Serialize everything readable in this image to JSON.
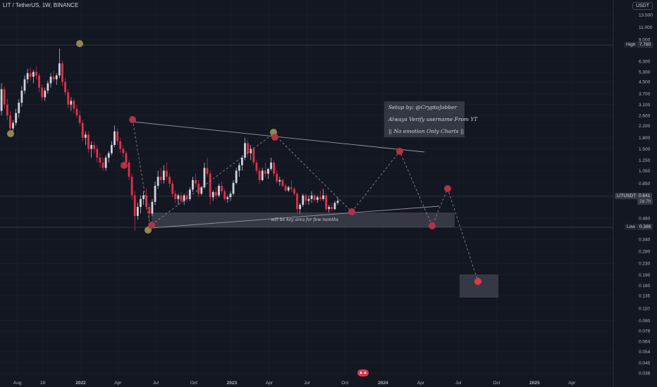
{
  "header": {
    "symbol_line": "LIT / TetherUS, 1W, BINANCE",
    "currency": "USDT"
  },
  "chart_data": {
    "type": "candlestick",
    "title": "LIT / TetherUS, 1W, BINANCE",
    "y_scale": "log",
    "ylim": [
      0.036,
      14.5
    ],
    "y_ticks": [
      "13.500",
      "11.000",
      "9.000",
      "7.780",
      "6.300",
      "5.300",
      "4.500",
      "3.700",
      "3.100",
      "2.600",
      "2.200",
      "1.800",
      "1.500",
      "1.250",
      "1.050",
      "0.850",
      "0.700",
      "0.641",
      "0.480",
      "0.386",
      "0.340",
      "0.280",
      "0.230",
      "0.190",
      "0.160",
      "0.135",
      "0.110",
      "0.090",
      "0.076",
      "0.064",
      "0.054",
      "0.045",
      "0.038"
    ],
    "y_tick_values": [
      13.5,
      11,
      9,
      7.78,
      6.3,
      5.3,
      4.5,
      3.7,
      3.1,
      2.6,
      2.2,
      1.8,
      1.5,
      1.25,
      1.05,
      0.85,
      0.7,
      0.641,
      0.48,
      0.386,
      0.34,
      0.28,
      0.23,
      0.19,
      0.16,
      0.135,
      0.11,
      0.09,
      0.076,
      0.064,
      0.054,
      0.045,
      0.038
    ],
    "x_ticks": [
      "Aug",
      "18",
      "2022",
      "Apr",
      "Jul",
      "Oct",
      "2023",
      "Apr",
      "Jul",
      "Oct",
      "2024",
      "Apr",
      "Jul",
      "Oct",
      "2025",
      "Apr"
    ],
    "x_tick_dates": [
      "2021-08-01",
      "2021-10-01",
      "2022-01-01",
      "2022-04-01",
      "2022-07-01",
      "2022-10-01",
      "2023-01-01",
      "2023-04-01",
      "2023-07-01",
      "2023-10-01",
      "2024-01-01",
      "2024-04-01",
      "2024-07-01",
      "2024-10-01",
      "2025-01-01",
      "2025-04-01"
    ],
    "xlim": [
      "2021-06-20",
      "2025-07-10"
    ],
    "price_high": {
      "label": "High",
      "value": "7.780"
    },
    "price_low": {
      "label": "Low",
      "value": "0.386"
    },
    "price_current": {
      "label": "LITUSDT",
      "value": "0.641",
      "countdown": "2d 7h"
    },
    "annotation": "will be key area for few months",
    "note_lines": [
      "Setup by: @CryptoJobber",
      "Always Verify username From YT",
      "|| No emotion Only Charts ||"
    ],
    "candles": [
      {
        "d": "2021-06-21",
        "o": 2.8,
        "h": 4.4,
        "l": 2.6,
        "c": 4.0
      },
      {
        "d": "2021-06-28",
        "o": 4.0,
        "h": 4.2,
        "l": 2.9,
        "c": 3.1
      },
      {
        "d": "2021-07-05",
        "o": 3.1,
        "h": 3.4,
        "l": 2.4,
        "c": 2.6
      },
      {
        "d": "2021-07-12",
        "o": 2.6,
        "h": 2.8,
        "l": 1.9,
        "c": 2.1
      },
      {
        "d": "2021-07-19",
        "o": 2.1,
        "h": 2.4,
        "l": 1.85,
        "c": 2.3
      },
      {
        "d": "2021-07-26",
        "o": 2.3,
        "h": 2.9,
        "l": 2.2,
        "c": 2.7
      },
      {
        "d": "2021-08-02",
        "o": 2.7,
        "h": 3.4,
        "l": 2.5,
        "c": 3.2
      },
      {
        "d": "2021-08-09",
        "o": 3.2,
        "h": 4.2,
        "l": 3.0,
        "c": 3.9
      },
      {
        "d": "2021-08-16",
        "o": 3.9,
        "h": 5.0,
        "l": 3.7,
        "c": 4.7
      },
      {
        "d": "2021-08-23",
        "o": 4.7,
        "h": 5.6,
        "l": 4.4,
        "c": 5.2
      },
      {
        "d": "2021-08-30",
        "o": 5.2,
        "h": 5.7,
        "l": 4.6,
        "c": 4.9
      },
      {
        "d": "2021-09-06",
        "o": 4.9,
        "h": 5.5,
        "l": 4.4,
        "c": 5.3
      },
      {
        "d": "2021-09-13",
        "o": 5.3,
        "h": 5.8,
        "l": 4.7,
        "c": 5.0
      },
      {
        "d": "2021-09-20",
        "o": 5.0,
        "h": 5.2,
        "l": 3.8,
        "c": 4.1
      },
      {
        "d": "2021-09-27",
        "o": 4.1,
        "h": 4.3,
        "l": 3.3,
        "c": 3.5
      },
      {
        "d": "2021-10-04",
        "o": 3.5,
        "h": 4.1,
        "l": 3.3,
        "c": 3.9
      },
      {
        "d": "2021-10-11",
        "o": 3.9,
        "h": 4.6,
        "l": 3.7,
        "c": 4.4
      },
      {
        "d": "2021-10-18",
        "o": 4.4,
        "h": 5.2,
        "l": 4.1,
        "c": 4.9
      },
      {
        "d": "2021-10-25",
        "o": 4.9,
        "h": 5.4,
        "l": 4.5,
        "c": 4.7
      },
      {
        "d": "2021-11-01",
        "o": 4.7,
        "h": 5.2,
        "l": 4.3,
        "c": 5.0
      },
      {
        "d": "2021-11-08",
        "o": 5.0,
        "h": 7.78,
        "l": 4.8,
        "c": 6.1
      },
      {
        "d": "2021-11-15",
        "o": 6.1,
        "h": 6.4,
        "l": 4.2,
        "c": 4.5
      },
      {
        "d": "2021-11-22",
        "o": 4.5,
        "h": 4.8,
        "l": 3.6,
        "c": 3.8
      },
      {
        "d": "2021-11-29",
        "o": 3.8,
        "h": 4.0,
        "l": 2.9,
        "c": 3.1
      },
      {
        "d": "2021-12-06",
        "o": 3.1,
        "h": 3.5,
        "l": 2.8,
        "c": 3.3
      },
      {
        "d": "2021-12-13",
        "o": 3.3,
        "h": 3.4,
        "l": 2.7,
        "c": 2.9
      },
      {
        "d": "2021-12-20",
        "o": 2.9,
        "h": 3.1,
        "l": 2.5,
        "c": 2.6
      },
      {
        "d": "2021-12-27",
        "o": 2.6,
        "h": 2.8,
        "l": 2.2,
        "c": 2.3
      },
      {
        "d": "2022-01-03",
        "o": 2.3,
        "h": 2.4,
        "l": 1.7,
        "c": 1.8
      },
      {
        "d": "2022-01-10",
        "o": 1.8,
        "h": 2.0,
        "l": 1.6,
        "c": 1.9
      },
      {
        "d": "2022-01-17",
        "o": 1.9,
        "h": 2.0,
        "l": 1.4,
        "c": 1.5
      },
      {
        "d": "2022-01-24",
        "o": 1.5,
        "h": 1.7,
        "l": 1.3,
        "c": 1.6
      },
      {
        "d": "2022-01-31",
        "o": 1.6,
        "h": 1.7,
        "l": 1.4,
        "c": 1.5
      },
      {
        "d": "2022-02-07",
        "o": 1.5,
        "h": 1.6,
        "l": 1.2,
        "c": 1.3
      },
      {
        "d": "2022-02-14",
        "o": 1.3,
        "h": 1.4,
        "l": 1.1,
        "c": 1.2
      },
      {
        "d": "2022-02-21",
        "o": 1.2,
        "h": 1.3,
        "l": 1.05,
        "c": 1.1
      },
      {
        "d": "2022-02-28",
        "o": 1.1,
        "h": 1.35,
        "l": 1.05,
        "c": 1.3
      },
      {
        "d": "2022-03-07",
        "o": 1.3,
        "h": 1.45,
        "l": 1.2,
        "c": 1.4
      },
      {
        "d": "2022-03-14",
        "o": 1.4,
        "h": 1.7,
        "l": 1.35,
        "c": 1.6
      },
      {
        "d": "2022-03-21",
        "o": 1.6,
        "h": 2.2,
        "l": 1.55,
        "c": 2.0
      },
      {
        "d": "2022-03-28",
        "o": 2.0,
        "h": 2.1,
        "l": 1.6,
        "c": 1.7
      },
      {
        "d": "2022-04-04",
        "o": 1.7,
        "h": 1.8,
        "l": 1.4,
        "c": 1.5
      },
      {
        "d": "2022-04-11",
        "o": 1.5,
        "h": 1.6,
        "l": 1.3,
        "c": 1.4
      },
      {
        "d": "2022-04-18",
        "o": 1.4,
        "h": 1.45,
        "l": 1.1,
        "c": 1.2
      },
      {
        "d": "2022-04-25",
        "o": 1.2,
        "h": 1.25,
        "l": 0.9,
        "c": 0.95
      },
      {
        "d": "2022-05-02",
        "o": 0.95,
        "h": 1.0,
        "l": 0.65,
        "c": 0.7
      },
      {
        "d": "2022-05-09",
        "o": 0.7,
        "h": 0.75,
        "l": 0.39,
        "c": 0.5
      },
      {
        "d": "2022-05-16",
        "o": 0.5,
        "h": 0.62,
        "l": 0.47,
        "c": 0.58
      },
      {
        "d": "2022-05-23",
        "o": 0.58,
        "h": 0.7,
        "l": 0.52,
        "c": 0.66
      },
      {
        "d": "2022-05-30",
        "o": 0.66,
        "h": 0.75,
        "l": 0.6,
        "c": 0.7
      },
      {
        "d": "2022-06-06",
        "o": 0.7,
        "h": 0.78,
        "l": 0.55,
        "c": 0.58
      },
      {
        "d": "2022-06-13",
        "o": 0.58,
        "h": 0.62,
        "l": 0.47,
        "c": 0.52
      },
      {
        "d": "2022-06-20",
        "o": 0.52,
        "h": 0.66,
        "l": 0.5,
        "c": 0.63
      },
      {
        "d": "2022-06-27",
        "o": 0.63,
        "h": 0.88,
        "l": 0.6,
        "c": 0.82
      },
      {
        "d": "2022-07-04",
        "o": 0.82,
        "h": 1.05,
        "l": 0.78,
        "c": 0.95
      },
      {
        "d": "2022-07-11",
        "o": 0.95,
        "h": 1.1,
        "l": 0.85,
        "c": 0.9
      },
      {
        "d": "2022-07-18",
        "o": 0.9,
        "h": 1.15,
        "l": 0.85,
        "c": 1.05
      },
      {
        "d": "2022-07-25",
        "o": 1.05,
        "h": 1.2,
        "l": 0.9,
        "c": 0.95
      },
      {
        "d": "2022-08-01",
        "o": 0.95,
        "h": 1.0,
        "l": 0.8,
        "c": 0.85
      },
      {
        "d": "2022-08-08",
        "o": 0.85,
        "h": 0.9,
        "l": 0.68,
        "c": 0.72
      },
      {
        "d": "2022-08-15",
        "o": 0.72,
        "h": 0.76,
        "l": 0.62,
        "c": 0.66
      },
      {
        "d": "2022-08-22",
        "o": 0.66,
        "h": 0.72,
        "l": 0.6,
        "c": 0.7
      },
      {
        "d": "2022-08-29",
        "o": 0.7,
        "h": 0.74,
        "l": 0.62,
        "c": 0.64
      },
      {
        "d": "2022-09-05",
        "o": 0.64,
        "h": 0.72,
        "l": 0.6,
        "c": 0.7
      },
      {
        "d": "2022-09-12",
        "o": 0.7,
        "h": 0.75,
        "l": 0.63,
        "c": 0.66
      },
      {
        "d": "2022-09-19",
        "o": 0.66,
        "h": 0.8,
        "l": 0.64,
        "c": 0.77
      },
      {
        "d": "2022-09-26",
        "o": 0.77,
        "h": 0.95,
        "l": 0.74,
        "c": 0.9
      },
      {
        "d": "2022-10-03",
        "o": 0.9,
        "h": 1.0,
        "l": 0.8,
        "c": 0.85
      },
      {
        "d": "2022-10-10",
        "o": 0.85,
        "h": 0.9,
        "l": 0.68,
        "c": 0.72
      },
      {
        "d": "2022-10-17",
        "o": 0.72,
        "h": 0.82,
        "l": 0.7,
        "c": 0.8
      },
      {
        "d": "2022-10-24",
        "o": 0.8,
        "h": 1.2,
        "l": 0.78,
        "c": 1.1
      },
      {
        "d": "2022-10-31",
        "o": 1.1,
        "h": 1.3,
        "l": 0.95,
        "c": 1.0
      },
      {
        "d": "2022-11-07",
        "o": 1.0,
        "h": 1.05,
        "l": 0.6,
        "c": 0.68
      },
      {
        "d": "2022-11-14",
        "o": 0.68,
        "h": 0.76,
        "l": 0.64,
        "c": 0.74
      },
      {
        "d": "2022-11-21",
        "o": 0.74,
        "h": 0.8,
        "l": 0.66,
        "c": 0.7
      },
      {
        "d": "2022-11-28",
        "o": 0.7,
        "h": 0.85,
        "l": 0.68,
        "c": 0.82
      },
      {
        "d": "2022-12-05",
        "o": 0.82,
        "h": 0.88,
        "l": 0.72,
        "c": 0.75
      },
      {
        "d": "2022-12-12",
        "o": 0.75,
        "h": 0.78,
        "l": 0.64,
        "c": 0.66
      },
      {
        "d": "2022-12-19",
        "o": 0.66,
        "h": 0.7,
        "l": 0.62,
        "c": 0.68
      },
      {
        "d": "2022-12-26",
        "o": 0.68,
        "h": 0.75,
        "l": 0.64,
        "c": 0.72
      },
      {
        "d": "2023-01-02",
        "o": 0.72,
        "h": 0.9,
        "l": 0.7,
        "c": 0.86
      },
      {
        "d": "2023-01-09",
        "o": 0.86,
        "h": 1.1,
        "l": 0.84,
        "c": 1.05
      },
      {
        "d": "2023-01-16",
        "o": 1.05,
        "h": 1.2,
        "l": 0.95,
        "c": 1.15
      },
      {
        "d": "2023-01-23",
        "o": 1.15,
        "h": 1.35,
        "l": 1.05,
        "c": 1.3
      },
      {
        "d": "2023-01-30",
        "o": 1.3,
        "h": 1.8,
        "l": 1.25,
        "c": 1.65
      },
      {
        "d": "2023-02-06",
        "o": 1.65,
        "h": 1.75,
        "l": 1.3,
        "c": 1.4
      },
      {
        "d": "2023-02-13",
        "o": 1.4,
        "h": 1.6,
        "l": 1.25,
        "c": 1.5
      },
      {
        "d": "2023-02-20",
        "o": 1.5,
        "h": 1.55,
        "l": 1.15,
        "c": 1.2
      },
      {
        "d": "2023-02-27",
        "o": 1.2,
        "h": 1.25,
        "l": 1.0,
        "c": 1.05
      },
      {
        "d": "2023-03-06",
        "o": 1.05,
        "h": 1.1,
        "l": 0.85,
        "c": 0.9
      },
      {
        "d": "2023-03-13",
        "o": 0.9,
        "h": 1.1,
        "l": 0.88,
        "c": 1.05
      },
      {
        "d": "2023-03-20",
        "o": 1.05,
        "h": 1.2,
        "l": 0.95,
        "c": 1.0
      },
      {
        "d": "2023-03-27",
        "o": 1.0,
        "h": 1.1,
        "l": 0.92,
        "c": 1.08
      },
      {
        "d": "2023-04-03",
        "o": 1.08,
        "h": 1.3,
        "l": 1.05,
        "c": 1.2
      },
      {
        "d": "2023-04-10",
        "o": 1.2,
        "h": 1.25,
        "l": 0.95,
        "c": 1.0
      },
      {
        "d": "2023-04-17",
        "o": 1.0,
        "h": 1.05,
        "l": 0.85,
        "c": 0.88
      },
      {
        "d": "2023-04-24",
        "o": 0.88,
        "h": 0.95,
        "l": 0.82,
        "c": 0.9
      },
      {
        "d": "2023-05-01",
        "o": 0.9,
        "h": 0.92,
        "l": 0.8,
        "c": 0.82
      },
      {
        "d": "2023-05-08",
        "o": 0.82,
        "h": 0.85,
        "l": 0.74,
        "c": 0.76
      },
      {
        "d": "2023-05-15",
        "o": 0.76,
        "h": 0.82,
        "l": 0.74,
        "c": 0.8
      },
      {
        "d": "2023-05-22",
        "o": 0.8,
        "h": 0.9,
        "l": 0.74,
        "c": 0.78
      },
      {
        "d": "2023-05-29",
        "o": 0.78,
        "h": 0.8,
        "l": 0.7,
        "c": 0.72
      },
      {
        "d": "2023-06-05",
        "o": 0.72,
        "h": 0.74,
        "l": 0.52,
        "c": 0.56
      },
      {
        "d": "2023-06-12",
        "o": 0.56,
        "h": 0.62,
        "l": 0.52,
        "c": 0.6
      },
      {
        "d": "2023-06-19",
        "o": 0.6,
        "h": 0.72,
        "l": 0.58,
        "c": 0.7
      },
      {
        "d": "2023-06-26",
        "o": 0.7,
        "h": 0.72,
        "l": 0.6,
        "c": 0.64
      },
      {
        "d": "2023-07-03",
        "o": 0.64,
        "h": 0.7,
        "l": 0.6,
        "c": 0.66
      },
      {
        "d": "2023-07-10",
        "o": 0.66,
        "h": 0.75,
        "l": 0.62,
        "c": 0.7
      },
      {
        "d": "2023-07-17",
        "o": 0.7,
        "h": 0.72,
        "l": 0.63,
        "c": 0.65
      },
      {
        "d": "2023-07-24",
        "o": 0.65,
        "h": 0.7,
        "l": 0.62,
        "c": 0.68
      },
      {
        "d": "2023-07-31",
        "o": 0.68,
        "h": 0.76,
        "l": 0.64,
        "c": 0.66
      },
      {
        "d": "2023-08-07",
        "o": 0.66,
        "h": 0.78,
        "l": 0.64,
        "c": 0.7
      },
      {
        "d": "2023-08-14",
        "o": 0.7,
        "h": 0.72,
        "l": 0.54,
        "c": 0.56
      },
      {
        "d": "2023-08-21",
        "o": 0.56,
        "h": 0.6,
        "l": 0.53,
        "c": 0.58
      },
      {
        "d": "2023-08-28",
        "o": 0.58,
        "h": 0.62,
        "l": 0.54,
        "c": 0.56
      },
      {
        "d": "2023-09-04",
        "o": 0.56,
        "h": 0.64,
        "l": 0.55,
        "c": 0.62
      },
      {
        "d": "2023-09-11",
        "o": 0.62,
        "h": 0.68,
        "l": 0.6,
        "c": 0.641
      }
    ]
  }
}
